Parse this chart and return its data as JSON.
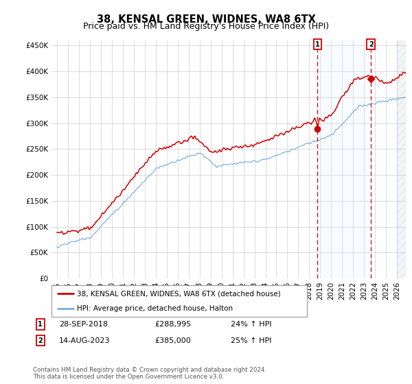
{
  "title": "38, KENSAL GREEN, WIDNES, WA8 6TX",
  "subtitle": "Price paid vs. HM Land Registry's House Price Index (HPI)",
  "ylabel_ticks": [
    "£0",
    "£50K",
    "£100K",
    "£150K",
    "£200K",
    "£250K",
    "£300K",
    "£350K",
    "£400K",
    "£450K"
  ],
  "ytick_values": [
    0,
    50000,
    100000,
    150000,
    200000,
    250000,
    300000,
    350000,
    400000,
    450000
  ],
  "ylim": [
    0,
    460000
  ],
  "xlim_start": 1994.5,
  "xlim_end": 2026.8,
  "legend_line1": "38, KENSAL GREEN, WIDNES, WA8 6TX (detached house)",
  "legend_line2": "HPI: Average price, detached house, Halton",
  "point1_label": "1",
  "point1_date": "28-SEP-2018",
  "point1_price": "£288,995",
  "point1_hpi": "24% ↑ HPI",
  "point1_x": 2018.75,
  "point1_y": 288995,
  "point2_label": "2",
  "point2_date": "14-AUG-2023",
  "point2_price": "£385,000",
  "point2_hpi": "25% ↑ HPI",
  "point2_x": 2023.62,
  "point2_y": 385000,
  "red_color": "#cc0000",
  "blue_color": "#7aaddc",
  "shade_color": "#ddeeff",
  "footer": "Contains HM Land Registry data © Crown copyright and database right 2024.\nThis data is licensed under the Open Government Licence v3.0.",
  "bg_color": "#ffffff",
  "grid_color": "#cccccc",
  "title_fontsize": 10.5,
  "subtitle_fontsize": 9,
  "tick_fontsize": 7.5
}
